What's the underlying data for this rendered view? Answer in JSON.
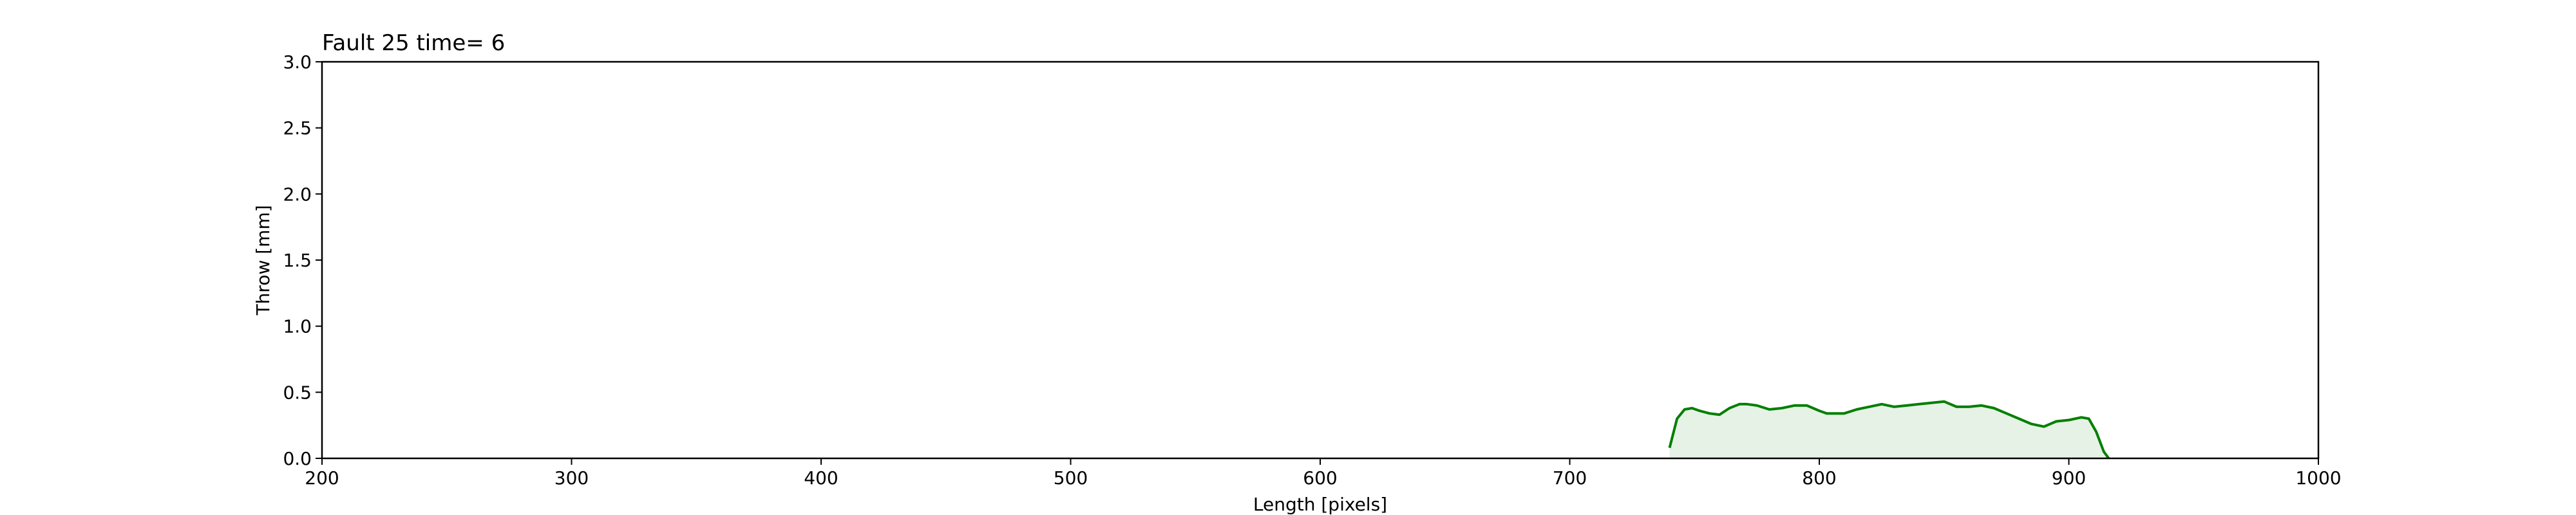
{
  "chart_data": {
    "type": "area",
    "title": "Fault 25 time= 6",
    "xlabel": "Length [pixels]",
    "ylabel": "Throw [mm]",
    "xlim": [
      200,
      1000
    ],
    "ylim": [
      0,
      3.0
    ],
    "xticks": [
      200,
      300,
      400,
      500,
      600,
      700,
      800,
      900,
      1000
    ],
    "xtick_labels": [
      "200",
      "300",
      "400",
      "500",
      "600",
      "700",
      "800",
      "900",
      "1000"
    ],
    "yticks": [
      0,
      0.5,
      1.0,
      1.5,
      2.0,
      2.5,
      3.0
    ],
    "ytick_labels": [
      "0.0",
      "0.5",
      "1.0",
      "1.5",
      "2.0",
      "2.5",
      "3.0"
    ],
    "grid": false,
    "legend": "none",
    "series": [
      {
        "color": "#007f00",
        "fill_color": "#e6f2e6",
        "x": [
          740,
          743,
          746,
          749,
          752,
          756,
          760,
          764,
          768,
          771,
          775,
          780,
          785,
          790,
          795,
          800,
          803,
          806,
          810,
          815,
          820,
          825,
          830,
          835,
          840,
          845,
          850,
          855,
          860,
          865,
          870,
          875,
          880,
          885,
          890,
          895,
          900,
          905,
          908,
          911,
          914,
          916
        ],
        "y": [
          0.08,
          0.3,
          0.37,
          0.38,
          0.36,
          0.34,
          0.33,
          0.38,
          0.41,
          0.41,
          0.4,
          0.37,
          0.38,
          0.4,
          0.4,
          0.36,
          0.34,
          0.34,
          0.34,
          0.37,
          0.39,
          0.41,
          0.39,
          0.4,
          0.41,
          0.42,
          0.43,
          0.39,
          0.39,
          0.4,
          0.38,
          0.34,
          0.3,
          0.26,
          0.24,
          0.28,
          0.29,
          0.31,
          0.3,
          0.2,
          0.05,
          0.0
        ]
      }
    ]
  }
}
